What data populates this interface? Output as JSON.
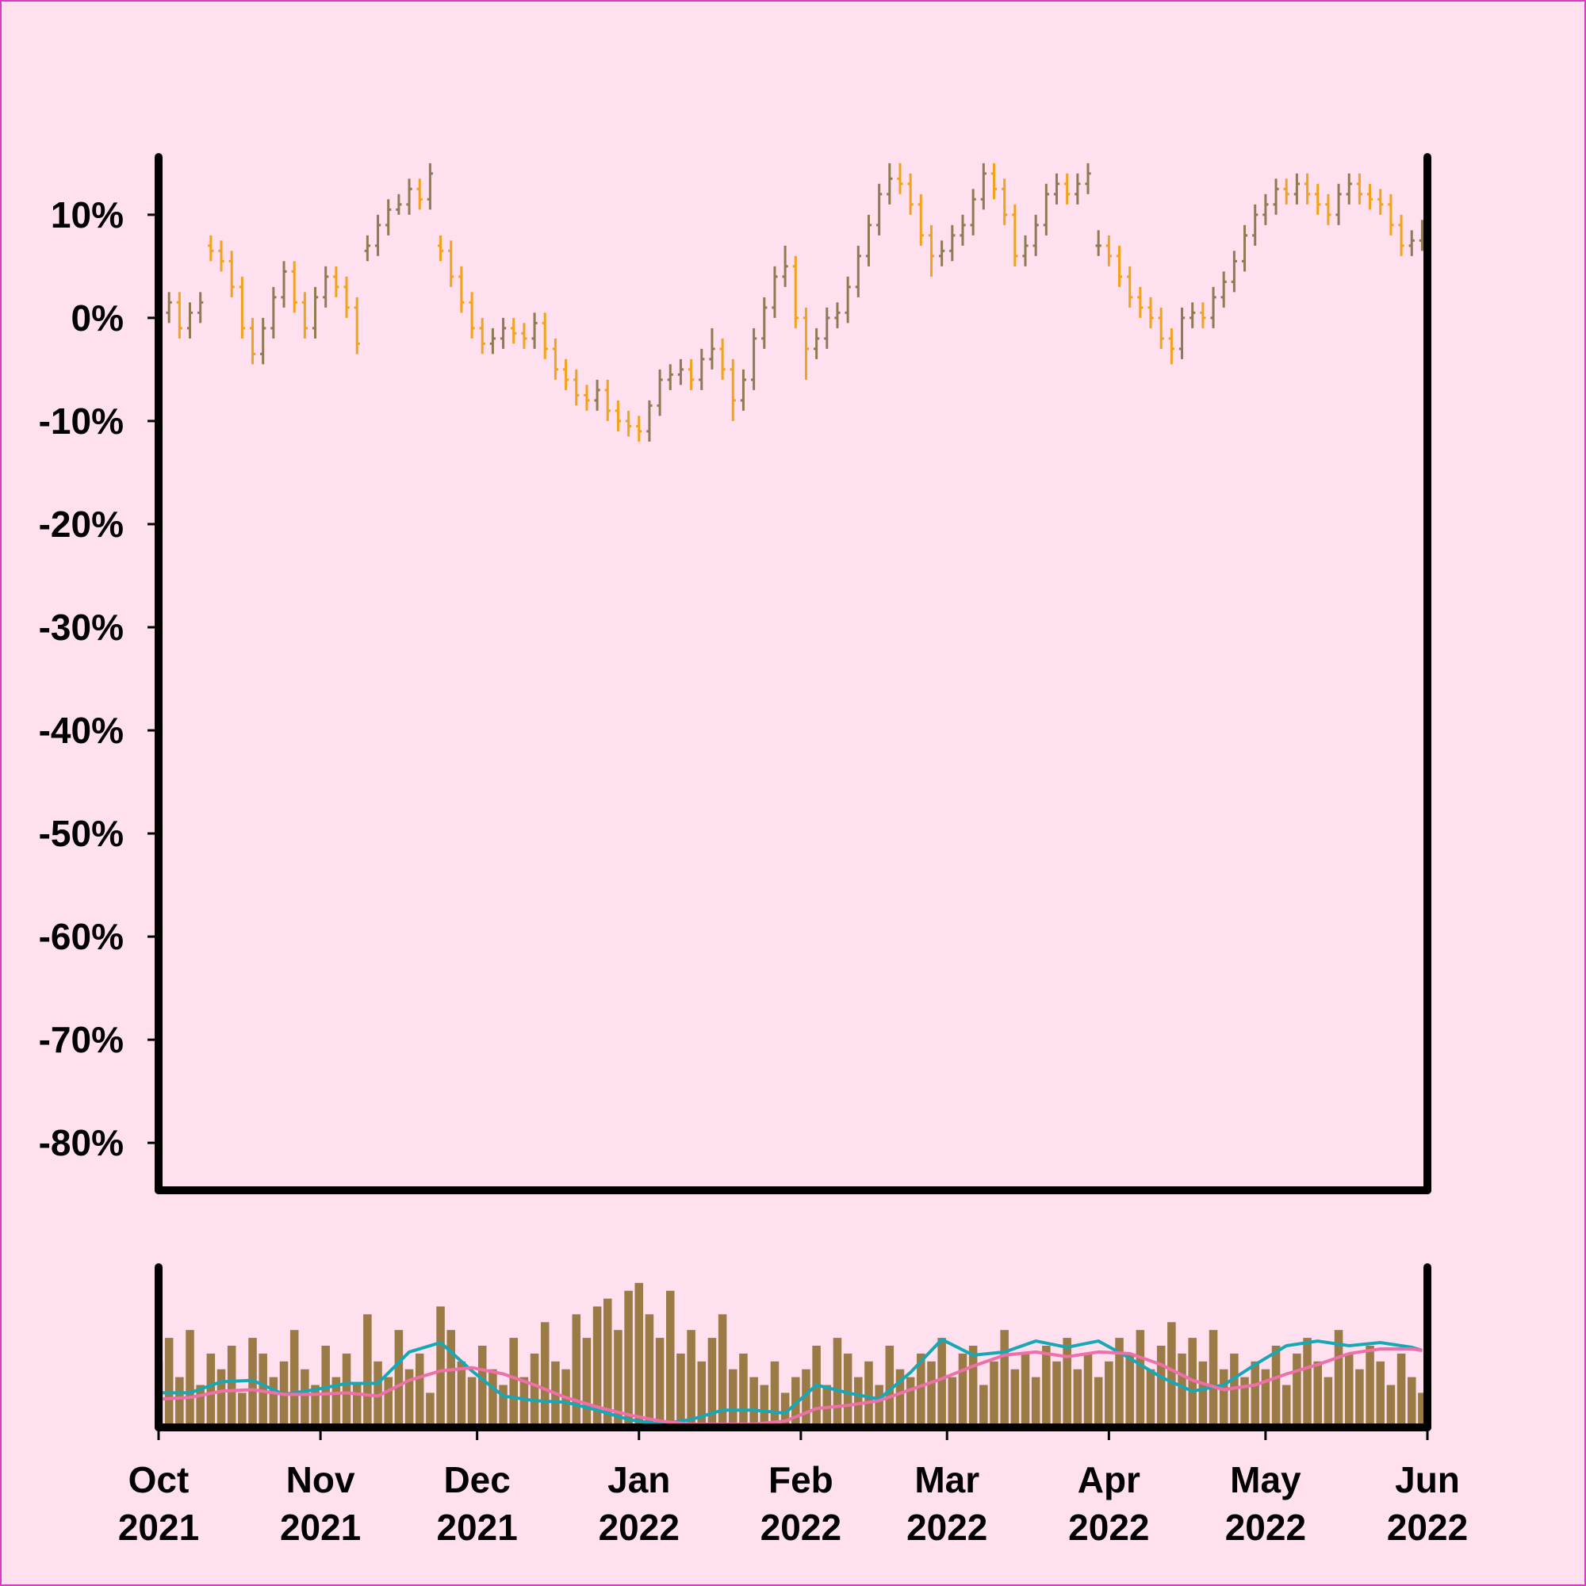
{
  "chart_data": {
    "type": "ohlc",
    "x": [
      0,
      2,
      4,
      6,
      8,
      10,
      12,
      14,
      16,
      18,
      20,
      22,
      24,
      26,
      28,
      30,
      32,
      34,
      36,
      38,
      40,
      42,
      44,
      46,
      48,
      50,
      52,
      54,
      56,
      58,
      60,
      62,
      64,
      66,
      68,
      70,
      72,
      74,
      76,
      78,
      80,
      82,
      84,
      86,
      88,
      90,
      92,
      94,
      96,
      98,
      100,
      102,
      104,
      106,
      108,
      110,
      112,
      114,
      116,
      118,
      120,
      122,
      124,
      126,
      128,
      130,
      132,
      134,
      136,
      138,
      140,
      142,
      144,
      146,
      148,
      150,
      152,
      154,
      156,
      158,
      160,
      162,
      164,
      166,
      168,
      170,
      172,
      174,
      176,
      178,
      180,
      182,
      184,
      186,
      188,
      190,
      192,
      194,
      196,
      198,
      200,
      202,
      204,
      206,
      208,
      210,
      212,
      214,
      216,
      218,
      220,
      222,
      224,
      226,
      228,
      230,
      232,
      234,
      236,
      238,
      240,
      242
    ],
    "ohlc": [
      [
        0,
        1.5,
        -1,
        0.5
      ],
      [
        0.5,
        2.5,
        -0.5,
        1.5
      ],
      [
        1.5,
        2.5,
        -2,
        -1
      ],
      [
        -1,
        1.5,
        -2,
        0.5
      ],
      [
        0.5,
        2.5,
        -0.5,
        1.5
      ],
      [
        7,
        8,
        5.5,
        6.5
      ],
      [
        6.5,
        7.5,
        4.5,
        5.5
      ],
      [
        5.5,
        6.5,
        2,
        3
      ],
      [
        3,
        4,
        -2,
        -1
      ],
      [
        -1,
        0,
        -4.5,
        -3.5
      ],
      [
        -3.5,
        0,
        -4.5,
        -1
      ],
      [
        -1,
        3,
        -2,
        2
      ],
      [
        2,
        5.5,
        1,
        4.5
      ],
      [
        4.5,
        5.5,
        0.5,
        1.5
      ],
      [
        1.5,
        2.5,
        -2,
        -1
      ],
      [
        -1,
        3,
        -2,
        2
      ],
      [
        2,
        5,
        1,
        4
      ],
      [
        4,
        5,
        2,
        3
      ],
      [
        3,
        4,
        0,
        1
      ],
      [
        1,
        2,
        -3.5,
        -2.5
      ],
      [
        6.5,
        8,
        5.5,
        7
      ],
      [
        7,
        10,
        6,
        9
      ],
      [
        9,
        11.5,
        8,
        10.5
      ],
      [
        10.5,
        12,
        10,
        11
      ],
      [
        11,
        13.5,
        10,
        12.5
      ],
      [
        12.5,
        13.5,
        10.5,
        11.5
      ],
      [
        11.5,
        15,
        10.5,
        14
      ],
      [
        7,
        8,
        5.5,
        6.5
      ],
      [
        6.5,
        7.5,
        3,
        4
      ],
      [
        4,
        5,
        0.5,
        1.5
      ],
      [
        1.5,
        2.5,
        -2,
        -1
      ],
      [
        -1,
        0,
        -3.5,
        -2.5
      ],
      [
        -2.5,
        -1,
        -3.5,
        -2
      ],
      [
        -2,
        0,
        -3,
        -1
      ],
      [
        -1,
        0,
        -2.5,
        -1.5
      ],
      [
        -1.5,
        -0.5,
        -3,
        -2
      ],
      [
        -2,
        0.5,
        -3,
        -0.5
      ],
      [
        -0.5,
        0.5,
        -4,
        -3
      ],
      [
        -3,
        -2,
        -6,
        -5
      ],
      [
        -5,
        -4,
        -7,
        -6
      ],
      [
        -6,
        -5,
        -8.5,
        -7.5
      ],
      [
        -7.5,
        -6.5,
        -9,
        -8
      ],
      [
        -8,
        -6,
        -9,
        -7
      ],
      [
        -7,
        -6,
        -10,
        -9
      ],
      [
        -9,
        -8,
        -11,
        -10
      ],
      [
        -10,
        -9,
        -11.5,
        -10.5
      ],
      [
        -10.5,
        -9.5,
        -12,
        -11
      ],
      [
        -11,
        -8,
        -12,
        -8.5
      ],
      [
        -8.5,
        -5,
        -9.5,
        -6
      ],
      [
        -6,
        -4.5,
        -7,
        -5.5
      ],
      [
        -5.5,
        -4,
        -6.5,
        -5
      ],
      [
        -5,
        -4,
        -7,
        -6
      ],
      [
        -6,
        -3,
        -7,
        -4
      ],
      [
        -4,
        -1,
        -5,
        -3
      ],
      [
        -3,
        -2,
        -6,
        -5
      ],
      [
        -5,
        -4,
        -10,
        -8
      ],
      [
        -8,
        -5,
        -9,
        -6
      ],
      [
        -6,
        -1,
        -7,
        -2
      ],
      [
        -2,
        2,
        -3,
        1
      ],
      [
        1,
        5,
        0,
        4
      ],
      [
        4,
        7,
        3,
        5
      ],
      [
        5,
        6,
        -1,
        0
      ],
      [
        0,
        1,
        -6,
        -3
      ],
      [
        -3,
        -1,
        -4,
        -2
      ],
      [
        -2,
        1,
        -3,
        0
      ],
      [
        0,
        1.5,
        -1,
        0.5
      ],
      [
        0.5,
        4,
        -0.5,
        3
      ],
      [
        3,
        7,
        2,
        6
      ],
      [
        6,
        10,
        5,
        9
      ],
      [
        9,
        13,
        8,
        12
      ],
      [
        12,
        15,
        11,
        13.5
      ],
      [
        13.5,
        15,
        12,
        13
      ],
      [
        13,
        14,
        10,
        11
      ],
      [
        11,
        12,
        7,
        8
      ],
      [
        8,
        9,
        4,
        6
      ],
      [
        6,
        7.5,
        5,
        6.5
      ],
      [
        6.5,
        9,
        5.5,
        8
      ],
      [
        8,
        10,
        7,
        9
      ],
      [
        9,
        12.5,
        8,
        11.5
      ],
      [
        11.5,
        15,
        10.5,
        14
      ],
      [
        14,
        15,
        11.5,
        12.5
      ],
      [
        12.5,
        13.5,
        9,
        10
      ],
      [
        10,
        11,
        5,
        6
      ],
      [
        6,
        8,
        5,
        7
      ],
      [
        7,
        10,
        6,
        9
      ],
      [
        9,
        13,
        8,
        12
      ],
      [
        12,
        14,
        11,
        13
      ],
      [
        13,
        14,
        11,
        12
      ],
      [
        12,
        14,
        11,
        13
      ],
      [
        13,
        15,
        12,
        14
      ],
      [
        7,
        8.5,
        6,
        7
      ],
      [
        7,
        8,
        5,
        6
      ],
      [
        6,
        7,
        3,
        4
      ],
      [
        4,
        5,
        1,
        2
      ],
      [
        2,
        3,
        0,
        1
      ],
      [
        1,
        2,
        -1,
        0
      ],
      [
        0,
        1,
        -3,
        -2
      ],
      [
        -2,
        -1,
        -4.5,
        -3
      ],
      [
        -3,
        1,
        -4,
        0
      ],
      [
        0,
        1.5,
        -1,
        0.5
      ],
      [
        0.5,
        1.5,
        -1,
        0
      ],
      [
        0,
        3,
        -1,
        2
      ],
      [
        2,
        4.5,
        1,
        3.5
      ],
      [
        3.5,
        6.5,
        2.5,
        5.5
      ],
      [
        5.5,
        9,
        4.5,
        8
      ],
      [
        8,
        11,
        7,
        10
      ],
      [
        10,
        12,
        9,
        11
      ],
      [
        11,
        13.5,
        10,
        12.5
      ],
      [
        12.5,
        13.5,
        11,
        12
      ],
      [
        12,
        14,
        11,
        13
      ],
      [
        13,
        14,
        11,
        12
      ],
      [
        12,
        13,
        10,
        11
      ],
      [
        11,
        12,
        9,
        10
      ],
      [
        10,
        13,
        9,
        12
      ],
      [
        12,
        14,
        11,
        13
      ],
      [
        13,
        14,
        11,
        12
      ],
      [
        12,
        13,
        10.5,
        11.5
      ],
      [
        11.5,
        12.5,
        10,
        11
      ],
      [
        11,
        12,
        8,
        9
      ],
      [
        9,
        10,
        6,
        7
      ],
      [
        7,
        8.5,
        6,
        7.5
      ],
      [
        7.5,
        9.5,
        6.5,
        8
      ]
    ],
    "up_color": "#8f7a54",
    "down_color": "#f2a31c",
    "xlim": [
      0,
      243
    ],
    "xticks": [
      {
        "value": 0,
        "label": [
          "Oct",
          "2021"
        ]
      },
      {
        "value": 31,
        "label": [
          "Nov",
          "2021"
        ]
      },
      {
        "value": 61,
        "label": [
          "Dec",
          "2021"
        ]
      },
      {
        "value": 92,
        "label": [
          "Jan",
          "2022"
        ]
      },
      {
        "value": 123,
        "label": [
          "Feb",
          "2022"
        ]
      },
      {
        "value": 151,
        "label": [
          "Mar",
          "2022"
        ]
      },
      {
        "value": 182,
        "label": [
          "Apr",
          "2022"
        ]
      },
      {
        "value": 212,
        "label": [
          "May",
          "2022"
        ]
      },
      {
        "value": 243,
        "label": [
          "Jun",
          "2022"
        ]
      }
    ],
    "ylim": [
      -84.6,
      15.6
    ],
    "yticks": [
      {
        "value": -80,
        "label": "-80%"
      },
      {
        "value": -70,
        "label": "-70%"
      },
      {
        "value": -60,
        "label": "-60%"
      },
      {
        "value": -50,
        "label": "-50%"
      },
      {
        "value": -40,
        "label": "-40%"
      },
      {
        "value": -30,
        "label": "-30%"
      },
      {
        "value": -20,
        "label": "-20%"
      },
      {
        "value": -10,
        "label": "-10%"
      },
      {
        "value": 0,
        "label": "0%"
      },
      {
        "value": 10,
        "label": "10%"
      }
    ],
    "volume": {
      "type": "bar",
      "color": "#9a7b45",
      "ylim": [
        0,
        100
      ],
      "values": [
        40,
        55,
        30,
        60,
        25,
        45,
        35,
        50,
        20,
        55,
        45,
        30,
        40,
        60,
        35,
        25,
        50,
        30,
        45,
        25,
        70,
        40,
        30,
        60,
        35,
        45,
        20,
        75,
        60,
        40,
        30,
        50,
        35,
        25,
        55,
        30,
        45,
        65,
        40,
        35,
        70,
        55,
        75,
        80,
        60,
        85,
        90,
        70,
        55,
        85,
        45,
        60,
        40,
        55,
        70,
        35,
        45,
        30,
        25,
        40,
        20,
        30,
        35,
        50,
        25,
        55,
        45,
        30,
        40,
        25,
        50,
        35,
        30,
        45,
        40,
        55,
        30,
        45,
        50,
        25,
        40,
        60,
        35,
        45,
        30,
        50,
        40,
        55,
        35,
        45,
        30,
        40,
        55,
        45,
        60,
        35,
        50,
        65,
        45,
        55,
        40,
        60,
        35,
        45,
        30,
        40,
        35,
        50,
        25,
        45,
        55,
        40,
        30,
        60,
        45,
        35,
        50,
        40,
        25,
        45,
        30,
        20
      ],
      "lines": [
        {
          "color": "#17a8b5",
          "x": [
            0,
            6,
            12,
            18,
            24,
            30,
            36,
            42,
            48,
            54,
            60,
            66,
            72,
            78,
            84,
            90,
            96,
            102,
            108,
            114,
            120,
            126,
            132,
            138,
            144,
            150,
            156,
            162,
            168,
            174,
            180,
            186,
            192,
            198,
            204,
            210,
            216,
            222,
            228,
            234,
            240,
            242
          ],
          "values": [
            20,
            20,
            27,
            28,
            19,
            22,
            26,
            26,
            46,
            52,
            34,
            18,
            15,
            14,
            9,
            3,
            0,
            3,
            9,
            9,
            7,
            25,
            20,
            16,
            33,
            54,
            44,
            46,
            53,
            49,
            53,
            42,
            30,
            21,
            25,
            38,
            50,
            53,
            50,
            52,
            49,
            47
          ]
        },
        {
          "color": "#ef6fa8",
          "x": [
            0,
            6,
            12,
            18,
            24,
            30,
            36,
            42,
            48,
            54,
            60,
            66,
            72,
            78,
            84,
            90,
            96,
            102,
            108,
            114,
            120,
            126,
            132,
            138,
            144,
            150,
            156,
            162,
            168,
            174,
            180,
            186,
            192,
            198,
            204,
            210,
            216,
            222,
            228,
            234,
            240,
            242
          ],
          "values": [
            16,
            17,
            21,
            22,
            19,
            19,
            20,
            18,
            28,
            34,
            36,
            32,
            25,
            17,
            11,
            6,
            2,
            0,
            0,
            0,
            2,
            10,
            12,
            15,
            22,
            29,
            37,
            44,
            46,
            43,
            46,
            45,
            38,
            28,
            22,
            25,
            32,
            38,
            45,
            48,
            48,
            47
          ]
        }
      ]
    }
  }
}
